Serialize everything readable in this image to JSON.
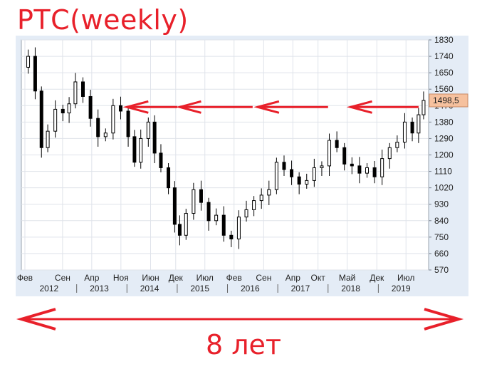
{
  "title": "РТС(weekly)",
  "span_label": "8 лет",
  "colors": {
    "accent": "#e8202a",
    "frame": "#e4ecf6",
    "grid": "#dfe3ea",
    "last_price_badge": "#f6c19e",
    "candle": "#000000"
  },
  "chart_data": {
    "type": "candlestick",
    "title": "",
    "y_ticks": [
      570,
      660,
      750,
      840,
      930,
      1020,
      1110,
      1200,
      1290,
      1380,
      1470,
      1560,
      1650,
      1740,
      1830
    ],
    "ylim": [
      570,
      1830
    ],
    "y_axis_side": "right",
    "last_price": 1498.5,
    "last_price_label": "1498,5",
    "x_ticks": [
      {
        "label": "Фев",
        "x": 2011.92
      },
      {
        "label": "Сен",
        "x": 2012.67
      },
      {
        "label": "Апр",
        "x": 2013.25
      },
      {
        "label": "Ноя",
        "x": 2013.83
      },
      {
        "label": "Июн",
        "x": 2014.42
      },
      {
        "label": "Дек",
        "x": 2014.92
      },
      {
        "label": "Июл",
        "x": 2015.5
      },
      {
        "label": "Фев",
        "x": 2016.08
      },
      {
        "label": "Сен",
        "x": 2016.67
      },
      {
        "label": "Апр",
        "x": 2017.25
      },
      {
        "label": "Окт",
        "x": 2017.75
      },
      {
        "label": "Май",
        "x": 2018.33
      },
      {
        "label": "Дек",
        "x": 2018.92
      },
      {
        "label": "Июл",
        "x": 2019.5
      }
    ],
    "year_labels": [
      {
        "label": "2012",
        "x": 2012.4
      },
      {
        "label": "2013",
        "x": 2013.4
      },
      {
        "label": "2014",
        "x": 2014.4
      },
      {
        "label": "2015",
        "x": 2015.4
      },
      {
        "label": "2016",
        "x": 2016.4
      },
      {
        "label": "2017",
        "x": 2017.4
      },
      {
        "label": "2018",
        "x": 2018.4
      },
      {
        "label": "2019",
        "x": 2019.4
      }
    ],
    "year_separators": [
      2012.95,
      2013.95,
      2014.95,
      2015.95,
      2016.95,
      2017.95,
      2018.95
    ],
    "xlim": [
      2011.85,
      2019.95
    ],
    "close_series": [
      {
        "x": 2011.92,
        "v": 1680
      },
      {
        "x": 2012.05,
        "v": 1740
      },
      {
        "x": 2012.2,
        "v": 1550
      },
      {
        "x": 2012.3,
        "v": 1240
      },
      {
        "x": 2012.45,
        "v": 1330
      },
      {
        "x": 2012.6,
        "v": 1450
      },
      {
        "x": 2012.75,
        "v": 1430
      },
      {
        "x": 2012.85,
        "v": 1480
      },
      {
        "x": 2013.0,
        "v": 1600
      },
      {
        "x": 2013.15,
        "v": 1520
      },
      {
        "x": 2013.3,
        "v": 1400
      },
      {
        "x": 2013.45,
        "v": 1300
      },
      {
        "x": 2013.6,
        "v": 1320
      },
      {
        "x": 2013.75,
        "v": 1470
      },
      {
        "x": 2013.9,
        "v": 1440
      },
      {
        "x": 2014.05,
        "v": 1300
      },
      {
        "x": 2014.15,
        "v": 1160
      },
      {
        "x": 2014.3,
        "v": 1290
      },
      {
        "x": 2014.45,
        "v": 1380
      },
      {
        "x": 2014.55,
        "v": 1210
      },
      {
        "x": 2014.7,
        "v": 1130
      },
      {
        "x": 2014.85,
        "v": 1020
      },
      {
        "x": 2014.95,
        "v": 820
      },
      {
        "x": 2015.05,
        "v": 760
      },
      {
        "x": 2015.2,
        "v": 880
      },
      {
        "x": 2015.35,
        "v": 1010
      },
      {
        "x": 2015.5,
        "v": 940
      },
      {
        "x": 2015.65,
        "v": 840
      },
      {
        "x": 2015.8,
        "v": 870
      },
      {
        "x": 2015.95,
        "v": 760
      },
      {
        "x": 2016.1,
        "v": 740
      },
      {
        "x": 2016.25,
        "v": 860
      },
      {
        "x": 2016.4,
        "v": 900
      },
      {
        "x": 2016.55,
        "v": 950
      },
      {
        "x": 2016.7,
        "v": 980
      },
      {
        "x": 2016.85,
        "v": 1010
      },
      {
        "x": 2017.0,
        "v": 1160
      },
      {
        "x": 2017.15,
        "v": 1120
      },
      {
        "x": 2017.3,
        "v": 1080
      },
      {
        "x": 2017.45,
        "v": 1040
      },
      {
        "x": 2017.6,
        "v": 1060
      },
      {
        "x": 2017.75,
        "v": 1130
      },
      {
        "x": 2017.9,
        "v": 1140
      },
      {
        "x": 2018.05,
        "v": 1280
      },
      {
        "x": 2018.2,
        "v": 1240
      },
      {
        "x": 2018.35,
        "v": 1150
      },
      {
        "x": 2018.5,
        "v": 1140
      },
      {
        "x": 2018.65,
        "v": 1100
      },
      {
        "x": 2018.8,
        "v": 1130
      },
      {
        "x": 2018.95,
        "v": 1080
      },
      {
        "x": 2019.1,
        "v": 1180
      },
      {
        "x": 2019.25,
        "v": 1240
      },
      {
        "x": 2019.4,
        "v": 1270
      },
      {
        "x": 2019.55,
        "v": 1380
      },
      {
        "x": 2019.7,
        "v": 1320
      },
      {
        "x": 2019.8,
        "v": 1420
      },
      {
        "x": 2019.9,
        "v": 1498.5
      }
    ],
    "resistance_level": 1470,
    "grid": true,
    "annotations": [
      "arrows pointing left along the 1470 level",
      "double-headed arrow spanning the whole period"
    ]
  }
}
